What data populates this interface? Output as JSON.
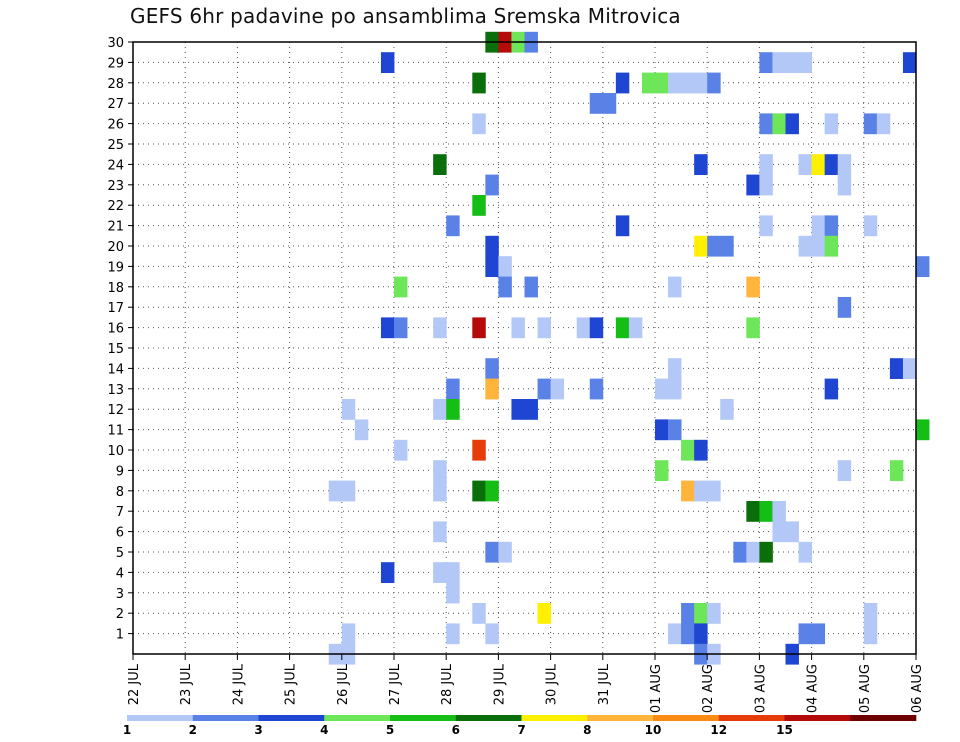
{
  "chart_data": {
    "type": "heatmap",
    "title": "GEFS 6hr padavine po ansamblima Sremska Mitrovica",
    "x_ticks": [
      "22 JUL",
      "23 JUL",
      "24 JUL",
      "25 JUL",
      "26 JUL",
      "27 JUL",
      "28 JUL",
      "29 JUL",
      "30 JUL",
      "31 JUL",
      "01 AUG",
      "02 AUG",
      "03 AUG",
      "04 AUG",
      "05 AUG",
      "06 AUG"
    ],
    "y_ticks": [
      "1",
      "2",
      "3",
      "4",
      "5",
      "6",
      "7",
      "8",
      "9",
      "10",
      "11",
      "12",
      "13",
      "14",
      "15",
      "16",
      "17",
      "18",
      "19",
      "20",
      "21",
      "22",
      "23",
      "24",
      "25",
      "26",
      "27",
      "28",
      "29",
      "30"
    ],
    "xlim": [
      "22 JUL",
      "06 AUG"
    ],
    "ylim": [
      0,
      30
    ],
    "grid": true,
    "colorbar": {
      "levels": [
        "1",
        "2",
        "3",
        "4",
        "5",
        "6",
        "7",
        "8",
        "10",
        "12",
        "15",
        "20"
      ],
      "colors": [
        "#b4c8f8",
        "#5a82e6",
        "#1e46d2",
        "#6ee65a",
        "#14be14",
        "#0a6e0a",
        "#fff000",
        "#ffb43c",
        "#fa8c14",
        "#e63c0a",
        "#b40a0a",
        "#6e0000"
      ]
    },
    "cells": [
      {
        "m": 30,
        "t": "28 JUL 18",
        "c": 6
      },
      {
        "m": 30,
        "t": "29 JUL 00",
        "c": 11
      },
      {
        "m": 30,
        "t": "29 JUL 06",
        "c": 4
      },
      {
        "m": 30,
        "t": "29 JUL 12",
        "c": 2
      },
      {
        "m": 29,
        "t": "26 JUL 18",
        "c": 3
      },
      {
        "m": 29,
        "t": "03 AUG 00",
        "c": 2
      },
      {
        "m": 29,
        "t": "03 AUG 06",
        "c": 1
      },
      {
        "m": 29,
        "t": "03 AUG 12",
        "c": 1
      },
      {
        "m": 29,
        "t": "03 AUG 18",
        "c": 1
      },
      {
        "m": 29,
        "t": "05 AUG 18",
        "c": 3
      },
      {
        "m": 28,
        "t": "28 JUL 12",
        "c": 6
      },
      {
        "m": 28,
        "t": "31 JUL 06",
        "c": 3
      },
      {
        "m": 28,
        "t": "31 JUL 18",
        "c": 4
      },
      {
        "m": 28,
        "t": "01 AUG 00",
        "c": 4
      },
      {
        "m": 28,
        "t": "01 AUG 06",
        "c": 1
      },
      {
        "m": 28,
        "t": "01 AUG 12",
        "c": 1
      },
      {
        "m": 28,
        "t": "01 AUG 18",
        "c": 1
      },
      {
        "m": 28,
        "t": "02 AUG 00",
        "c": 2
      },
      {
        "m": 27,
        "t": "30 JUL 18",
        "c": 2
      },
      {
        "m": 27,
        "t": "31 JUL 00",
        "c": 2
      },
      {
        "m": 26,
        "t": "28 JUL 12",
        "c": 1
      },
      {
        "m": 26,
        "t": "03 AUG 00",
        "c": 2
      },
      {
        "m": 26,
        "t": "03 AUG 06",
        "c": 4
      },
      {
        "m": 26,
        "t": "03 AUG 12",
        "c": 3
      },
      {
        "m": 26,
        "t": "04 AUG 06",
        "c": 1
      },
      {
        "m": 26,
        "t": "05 AUG 00",
        "c": 2
      },
      {
        "m": 26,
        "t": "05 AUG 06",
        "c": 1
      },
      {
        "m": 24,
        "t": "27 JUL 18",
        "c": 6
      },
      {
        "m": 24,
        "t": "01 AUG 18",
        "c": 3
      },
      {
        "m": 24,
        "t": "03 AUG 00",
        "c": 1
      },
      {
        "m": 24,
        "t": "03 AUG 18",
        "c": 1
      },
      {
        "m": 24,
        "t": "04 AUG 00",
        "c": 7
      },
      {
        "m": 24,
        "t": "04 AUG 06",
        "c": 3
      },
      {
        "m": 24,
        "t": "04 AUG 12",
        "c": 1
      },
      {
        "m": 23,
        "t": "28 JUL 18",
        "c": 2
      },
      {
        "m": 23,
        "t": "02 AUG 18",
        "c": 3
      },
      {
        "m": 23,
        "t": "03 AUG 00",
        "c": 1
      },
      {
        "m": 23,
        "t": "04 AUG 12",
        "c": 1
      },
      {
        "m": 22,
        "t": "28 JUL 12",
        "c": 5
      },
      {
        "m": 21,
        "t": "28 JUL 00",
        "c": 2
      },
      {
        "m": 21,
        "t": "31 JUL 06",
        "c": 3
      },
      {
        "m": 21,
        "t": "03 AUG 00",
        "c": 1
      },
      {
        "m": 21,
        "t": "04 AUG 00",
        "c": 1
      },
      {
        "m": 21,
        "t": "04 AUG 06",
        "c": 2
      },
      {
        "m": 21,
        "t": "05 AUG 00",
        "c": 1
      },
      {
        "m": 20,
        "t": "28 JUL 18",
        "c": 3
      },
      {
        "m": 20,
        "t": "01 AUG 18",
        "c": 7
      },
      {
        "m": 20,
        "t": "02 AUG 00",
        "c": 2
      },
      {
        "m": 20,
        "t": "02 AUG 06",
        "c": 2
      },
      {
        "m": 20,
        "t": "03 AUG 18",
        "c": 1
      },
      {
        "m": 20,
        "t": "04 AUG 00",
        "c": 1
      },
      {
        "m": 20,
        "t": "04 AUG 06",
        "c": 4
      },
      {
        "m": 19,
        "t": "28 JUL 18",
        "c": 3
      },
      {
        "m": 19,
        "t": "29 JUL 00",
        "c": 1
      },
      {
        "m": 19,
        "t": "06 AUG 00",
        "c": 2
      },
      {
        "m": 18,
        "t": "27 JUL 00",
        "c": 4
      },
      {
        "m": 18,
        "t": "29 JUL 00",
        "c": 2
      },
      {
        "m": 18,
        "t": "29 JUL 12",
        "c": 2
      },
      {
        "m": 18,
        "t": "01 AUG 06",
        "c": 1
      },
      {
        "m": 18,
        "t": "02 AUG 18",
        "c": 8
      },
      {
        "m": 17,
        "t": "04 AUG 12",
        "c": 2
      },
      {
        "m": 16,
        "t": "26 JUL 18",
        "c": 3
      },
      {
        "m": 16,
        "t": "27 JUL 00",
        "c": 2
      },
      {
        "m": 16,
        "t": "27 JUL 18",
        "c": 1
      },
      {
        "m": 16,
        "t": "28 JUL 12",
        "c": 11
      },
      {
        "m": 16,
        "t": "29 JUL 06",
        "c": 1
      },
      {
        "m": 16,
        "t": "29 JUL 18",
        "c": 1
      },
      {
        "m": 16,
        "t": "30 JUL 12",
        "c": 1
      },
      {
        "m": 16,
        "t": "30 JUL 18",
        "c": 3
      },
      {
        "m": 16,
        "t": "31 JUL 06",
        "c": 5
      },
      {
        "m": 16,
        "t": "31 JUL 12",
        "c": 1
      },
      {
        "m": 16,
        "t": "02 AUG 18",
        "c": 4
      },
      {
        "m": 14,
        "t": "28 JUL 18",
        "c": 2
      },
      {
        "m": 14,
        "t": "01 AUG 06",
        "c": 1
      },
      {
        "m": 14,
        "t": "05 AUG 12",
        "c": 3
      },
      {
        "m": 14,
        "t": "05 AUG 18",
        "c": 1
      },
      {
        "m": 13,
        "t": "28 JUL 00",
        "c": 2
      },
      {
        "m": 13,
        "t": "28 JUL 18",
        "c": 8
      },
      {
        "m": 13,
        "t": "29 JUL 18",
        "c": 2
      },
      {
        "m": 13,
        "t": "30 JUL 00",
        "c": 1
      },
      {
        "m": 13,
        "t": "30 JUL 18",
        "c": 2
      },
      {
        "m": 13,
        "t": "01 AUG 00",
        "c": 1
      },
      {
        "m": 13,
        "t": "01 AUG 06",
        "c": 1
      },
      {
        "m": 13,
        "t": "04 AUG 06",
        "c": 3
      },
      {
        "m": 12,
        "t": "26 JUL 00",
        "c": 1
      },
      {
        "m": 12,
        "t": "27 JUL 18",
        "c": 1
      },
      {
        "m": 12,
        "t": "28 JUL 00",
        "c": 5
      },
      {
        "m": 12,
        "t": "29 JUL 06",
        "c": 3
      },
      {
        "m": 12,
        "t": "29 JUL 12",
        "c": 3
      },
      {
        "m": 12,
        "t": "02 AUG 06",
        "c": 1
      },
      {
        "m": 11,
        "t": "26 JUL 06",
        "c": 1
      },
      {
        "m": 11,
        "t": "01 AUG 00",
        "c": 3
      },
      {
        "m": 11,
        "t": "01 AUG 06",
        "c": 2
      },
      {
        "m": 11,
        "t": "06 AUG 00",
        "c": 5
      },
      {
        "m": 10,
        "t": "27 JUL 00",
        "c": 1
      },
      {
        "m": 10,
        "t": "28 JUL 12",
        "c": 10
      },
      {
        "m": 10,
        "t": "01 AUG 12",
        "c": 4
      },
      {
        "m": 10,
        "t": "01 AUG 18",
        "c": 3
      },
      {
        "m": 9,
        "t": "27 JUL 18",
        "c": 1
      },
      {
        "m": 9,
        "t": "01 AUG 00",
        "c": 4
      },
      {
        "m": 9,
        "t": "04 AUG 12",
        "c": 1
      },
      {
        "m": 9,
        "t": "05 AUG 12",
        "c": 4
      },
      {
        "m": 8,
        "t": "25 JUL 18",
        "c": 1
      },
      {
        "m": 8,
        "t": "26 JUL 00",
        "c": 1
      },
      {
        "m": 8,
        "t": "27 JUL 18",
        "c": 1
      },
      {
        "m": 8,
        "t": "28 JUL 12",
        "c": 6
      },
      {
        "m": 8,
        "t": "28 JUL 18",
        "c": 5
      },
      {
        "m": 8,
        "t": "01 AUG 12",
        "c": 8
      },
      {
        "m": 8,
        "t": "01 AUG 18",
        "c": 1
      },
      {
        "m": 8,
        "t": "02 AUG 00",
        "c": 1
      },
      {
        "m": 7,
        "t": "02 AUG 18",
        "c": 6
      },
      {
        "m": 7,
        "t": "03 AUG 00",
        "c": 5
      },
      {
        "m": 7,
        "t": "03 AUG 06",
        "c": 1
      },
      {
        "m": 6,
        "t": "27 JUL 18",
        "c": 1
      },
      {
        "m": 6,
        "t": "03 AUG 06",
        "c": 1
      },
      {
        "m": 6,
        "t": "03 AUG 12",
        "c": 1
      },
      {
        "m": 5,
        "t": "28 JUL 18",
        "c": 2
      },
      {
        "m": 5,
        "t": "29 JUL 00",
        "c": 1
      },
      {
        "m": 5,
        "t": "02 AUG 12",
        "c": 2
      },
      {
        "m": 5,
        "t": "02 AUG 18",
        "c": 1
      },
      {
        "m": 5,
        "t": "03 AUG 00",
        "c": 6
      },
      {
        "m": 5,
        "t": "03 AUG 18",
        "c": 1
      },
      {
        "m": 4,
        "t": "26 JUL 18",
        "c": 3
      },
      {
        "m": 4,
        "t": "27 JUL 18",
        "c": 1
      },
      {
        "m": 4,
        "t": "28 JUL 00",
        "c": 1
      },
      {
        "m": 3,
        "t": "28 JUL 00",
        "c": 1
      },
      {
        "m": 2,
        "t": "28 JUL 12",
        "c": 1
      },
      {
        "m": 2,
        "t": "29 JUL 18",
        "c": 7
      },
      {
        "m": 2,
        "t": "01 AUG 12",
        "c": 2
      },
      {
        "m": 2,
        "t": "01 AUG 18",
        "c": 4
      },
      {
        "m": 2,
        "t": "02 AUG 00",
        "c": 1
      },
      {
        "m": 2,
        "t": "05 AUG 00",
        "c": 1
      },
      {
        "m": 1,
        "t": "26 JUL 00",
        "c": 1
      },
      {
        "m": 1,
        "t": "28 JUL 00",
        "c": 1
      },
      {
        "m": 1,
        "t": "28 JUL 18",
        "c": 1
      },
      {
        "m": 1,
        "t": "01 AUG 06",
        "c": 1
      },
      {
        "m": 1,
        "t": "01 AUG 12",
        "c": 2
      },
      {
        "m": 1,
        "t": "01 AUG 18",
        "c": 3
      },
      {
        "m": 1,
        "t": "03 AUG 18",
        "c": 2
      },
      {
        "m": 1,
        "t": "04 AUG 00",
        "c": 2
      },
      {
        "m": 1,
        "t": "05 AUG 00",
        "c": 1
      },
      {
        "m": 0,
        "t": "25 JUL 18",
        "c": 1
      },
      {
        "m": 0,
        "t": "26 JUL 00",
        "c": 1
      },
      {
        "m": 0,
        "t": "01 AUG 18",
        "c": 2
      },
      {
        "m": 0,
        "t": "02 AUG 00",
        "c": 1
      },
      {
        "m": 0,
        "t": "03 AUG 12",
        "c": 3
      }
    ]
  }
}
